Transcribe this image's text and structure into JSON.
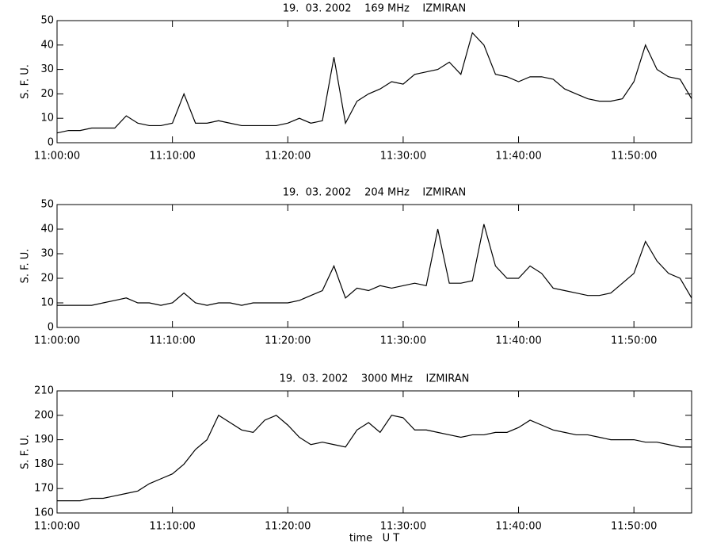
{
  "chart_data": [
    {
      "type": "line",
      "title": "19.  03. 2002    169 MHz    IZMIRAN",
      "ylabel": "S. F. U.",
      "color": "#000000",
      "x": [
        "11:00:00",
        "11:01:00",
        "11:02:00",
        "11:03:00",
        "11:04:00",
        "11:05:00",
        "11:06:00",
        "11:07:00",
        "11:08:00",
        "11:09:00",
        "11:10:00",
        "11:11:00",
        "11:12:00",
        "11:13:00",
        "11:14:00",
        "11:15:00",
        "11:16:00",
        "11:17:00",
        "11:18:00",
        "11:19:00",
        "11:20:00",
        "11:21:00",
        "11:22:00",
        "11:23:00",
        "11:24:00",
        "11:25:00",
        "11:26:00",
        "11:27:00",
        "11:28:00",
        "11:29:00",
        "11:30:00",
        "11:31:00",
        "11:32:00",
        "11:33:00",
        "11:34:00",
        "11:35:00",
        "11:36:00",
        "11:37:00",
        "11:38:00",
        "11:39:00",
        "11:40:00",
        "11:41:00",
        "11:42:00",
        "11:43:00",
        "11:44:00",
        "11:45:00",
        "11:46:00",
        "11:47:00",
        "11:48:00",
        "11:49:00",
        "11:50:00",
        "11:51:00",
        "11:52:00",
        "11:53:00",
        "11:54:00",
        "11:55:00"
      ],
      "values": [
        4,
        5,
        5,
        6,
        6,
        6,
        11,
        8,
        7,
        7,
        8,
        20,
        8,
        8,
        9,
        8,
        7,
        7,
        7,
        7,
        8,
        10,
        8,
        9,
        35,
        8,
        17,
        20,
        22,
        25,
        24,
        28,
        29,
        30,
        33,
        28,
        45,
        40,
        28,
        27,
        25,
        27,
        27,
        26,
        22,
        20,
        18,
        17,
        17,
        18,
        25,
        40,
        30,
        27,
        26,
        18
      ],
      "xlim": [
        "11:00:00",
        "11:55:00"
      ],
      "xticks": [
        "11:00:00",
        "11:10:00",
        "11:20:00",
        "11:30:00",
        "11:40:00",
        "11:50:00"
      ],
      "ylim": [
        0,
        50
      ],
      "yticks": [
        0,
        10,
        20,
        30,
        40,
        50
      ]
    },
    {
      "type": "line",
      "title": "19.  03. 2002    204 MHz    IZMIRAN",
      "ylabel": "S. F. U.",
      "color": "#000000",
      "x": [
        "11:00:00",
        "11:01:00",
        "11:02:00",
        "11:03:00",
        "11:04:00",
        "11:05:00",
        "11:06:00",
        "11:07:00",
        "11:08:00",
        "11:09:00",
        "11:10:00",
        "11:11:00",
        "11:12:00",
        "11:13:00",
        "11:14:00",
        "11:15:00",
        "11:16:00",
        "11:17:00",
        "11:18:00",
        "11:19:00",
        "11:20:00",
        "11:21:00",
        "11:22:00",
        "11:23:00",
        "11:24:00",
        "11:25:00",
        "11:26:00",
        "11:27:00",
        "11:28:00",
        "11:29:00",
        "11:30:00",
        "11:31:00",
        "11:32:00",
        "11:33:00",
        "11:34:00",
        "11:35:00",
        "11:36:00",
        "11:37:00",
        "11:38:00",
        "11:39:00",
        "11:40:00",
        "11:41:00",
        "11:42:00",
        "11:43:00",
        "11:44:00",
        "11:45:00",
        "11:46:00",
        "11:47:00",
        "11:48:00",
        "11:49:00",
        "11:50:00",
        "11:51:00",
        "11:52:00",
        "11:53:00",
        "11:54:00",
        "11:55:00"
      ],
      "values": [
        9,
        9,
        9,
        9,
        10,
        11,
        12,
        10,
        10,
        9,
        10,
        14,
        10,
        9,
        10,
        10,
        9,
        10,
        10,
        10,
        10,
        11,
        13,
        15,
        25,
        12,
        16,
        15,
        17,
        16,
        17,
        18,
        17,
        40,
        18,
        18,
        19,
        42,
        25,
        20,
        20,
        25,
        22,
        16,
        15,
        14,
        13,
        13,
        14,
        18,
        22,
        35,
        27,
        22,
        20,
        12
      ],
      "xlim": [
        "11:00:00",
        "11:55:00"
      ],
      "xticks": [
        "11:00:00",
        "11:10:00",
        "11:20:00",
        "11:30:00",
        "11:40:00",
        "11:50:00"
      ],
      "ylim": [
        0,
        50
      ],
      "yticks": [
        0,
        10,
        20,
        30,
        40,
        50
      ]
    },
    {
      "type": "line",
      "title": "19.  03. 2002    3000 MHz    IZMIRAN",
      "ylabel": "S. F. U.",
      "xlabel": "time   U T",
      "color": "#000000",
      "x": [
        "11:00:00",
        "11:01:00",
        "11:02:00",
        "11:03:00",
        "11:04:00",
        "11:05:00",
        "11:06:00",
        "11:07:00",
        "11:08:00",
        "11:09:00",
        "11:10:00",
        "11:11:00",
        "11:12:00",
        "11:13:00",
        "11:14:00",
        "11:15:00",
        "11:16:00",
        "11:17:00",
        "11:18:00",
        "11:19:00",
        "11:20:00",
        "11:21:00",
        "11:22:00",
        "11:23:00",
        "11:24:00",
        "11:25:00",
        "11:26:00",
        "11:27:00",
        "11:28:00",
        "11:29:00",
        "11:30:00",
        "11:31:00",
        "11:32:00",
        "11:33:00",
        "11:34:00",
        "11:35:00",
        "11:36:00",
        "11:37:00",
        "11:38:00",
        "11:39:00",
        "11:40:00",
        "11:41:00",
        "11:42:00",
        "11:43:00",
        "11:44:00",
        "11:45:00",
        "11:46:00",
        "11:47:00",
        "11:48:00",
        "11:49:00",
        "11:50:00",
        "11:51:00",
        "11:52:00",
        "11:53:00",
        "11:54:00",
        "11:55:00"
      ],
      "values": [
        165,
        165,
        165,
        166,
        166,
        167,
        168,
        169,
        172,
        174,
        176,
        180,
        186,
        190,
        200,
        197,
        194,
        193,
        198,
        200,
        196,
        191,
        188,
        189,
        188,
        187,
        194,
        197,
        193,
        200,
        199,
        194,
        194,
        193,
        192,
        191,
        192,
        192,
        193,
        193,
        195,
        198,
        196,
        194,
        193,
        192,
        192,
        191,
        190,
        190,
        190,
        189,
        189,
        188,
        187,
        187
      ],
      "xlim": [
        "11:00:00",
        "11:55:00"
      ],
      "xticks": [
        "11:00:00",
        "11:10:00",
        "11:20:00",
        "11:30:00",
        "11:40:00",
        "11:50:00"
      ],
      "ylim": [
        160,
        210
      ],
      "yticks": [
        160,
        170,
        180,
        190,
        200,
        210
      ]
    }
  ]
}
